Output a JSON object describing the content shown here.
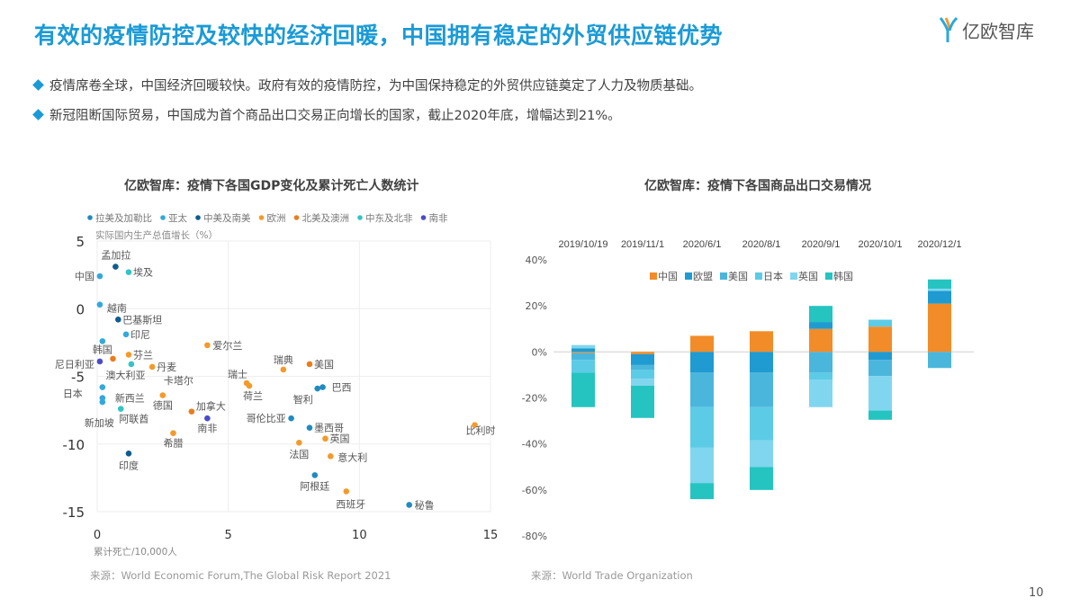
{
  "header": {
    "title": "有效的疫情防控及较快的经济回暖，中国拥有稳定的外贸供应链优势",
    "logo_text": "亿欧智库"
  },
  "bullets": [
    "疫情席卷全球，中国经济回暖较快。政府有效的疫情防控，为中国保持稳定的外贸供应链奠定了人力及物质基础。",
    "新冠阻断国际贸易，中国成为首个商品出口交易正向增长的国家，截止2020年底，增幅达到21%。"
  ],
  "page_number": "10",
  "chart_data": [
    {
      "type": "scatter",
      "title": "亿欧智库：疫情下各国GDP变化及累计死亡人数统计",
      "xlabel": "累计死亡/10,000人",
      "ylabel": "实际国内生产总值增长（%）",
      "xlim": [
        0,
        15
      ],
      "ylim": [
        -15,
        5
      ],
      "xticks": [
        "0",
        "5",
        "10",
        "15"
      ],
      "yticks": [
        "5",
        "0",
        "-5",
        "-10",
        "-15"
      ],
      "grid": true,
      "legend_position": "top",
      "groups": [
        {
          "name": "拉美及加勒比",
          "color": "#1f8bbf"
        },
        {
          "name": "亚太",
          "color": "#32a8dd"
        },
        {
          "name": "中美及南美",
          "color": "#0f5c8f"
        },
        {
          "name": "欧洲",
          "color": "#f39a2b"
        },
        {
          "name": "北美及澳洲",
          "color": "#ea7d1c"
        },
        {
          "name": "中东及北非",
          "color": "#33c4c4"
        },
        {
          "name": "南非",
          "color": "#4b4bc9"
        }
      ],
      "points": [
        {
          "label": "孟加拉",
          "group": 2,
          "x": 0.7,
          "y": 3.1
        },
        {
          "label": "埃及",
          "group": 5,
          "x": 1.2,
          "y": 2.7
        },
        {
          "label": "中国",
          "group": 1,
          "x": 0.1,
          "y": 2.4
        },
        {
          "label": "越南",
          "group": 1,
          "x": 0.1,
          "y": 0.3
        },
        {
          "label": "巴基斯坦",
          "group": 2,
          "x": 0.8,
          "y": -0.8
        },
        {
          "label": "印尼",
          "group": 1,
          "x": 1.1,
          "y": -1.9
        },
        {
          "label": "韩国",
          "group": 1,
          "x": 0.2,
          "y": -2.4
        },
        {
          "label": "芬兰",
          "group": 3,
          "x": 1.2,
          "y": -3.4
        },
        {
          "label": "尼日利亚",
          "group": 6,
          "x": 0.1,
          "y": -3.9
        },
        {
          "label": "澳大利亚",
          "group": 4,
          "x": 0.6,
          "y": -3.7
        },
        {
          "label": "卡塔尔",
          "group": 5,
          "x": 1.3,
          "y": -4.1
        },
        {
          "label": "丹麦",
          "group": 3,
          "x": 2.1,
          "y": -4.3
        },
        {
          "label": "爱尔兰",
          "group": 3,
          "x": 4.2,
          "y": -2.7
        },
        {
          "label": "瑞典",
          "group": 3,
          "x": 7.1,
          "y": -4.5
        },
        {
          "label": "美国",
          "group": 4,
          "x": 8.1,
          "y": -4.1
        },
        {
          "label": "瑞士",
          "group": 3,
          "x": 5.7,
          "y": -5.5
        },
        {
          "label": "荷兰",
          "group": 3,
          "x": 5.8,
          "y": -5.7
        },
        {
          "label": "巴西",
          "group": 0,
          "x": 8.6,
          "y": -5.8
        },
        {
          "label": "智利",
          "group": 0,
          "x": 8.4,
          "y": -5.9
        },
        {
          "label": "日本",
          "group": 1,
          "x": 0.2,
          "y": -5.8
        },
        {
          "label": "新西兰",
          "group": 1,
          "x": 0.2,
          "y": -6.6
        },
        {
          "label": "新加坡",
          "group": 1,
          "x": 0.2,
          "y": -6.9
        },
        {
          "label": "德国",
          "group": 3,
          "x": 2.5,
          "y": -6.4
        },
        {
          "label": "阿联酋",
          "group": 5,
          "x": 0.9,
          "y": -7.4
        },
        {
          "label": "加拿大",
          "group": 4,
          "x": 3.6,
          "y": -7.6
        },
        {
          "label": "南非",
          "group": 6,
          "x": 4.2,
          "y": -8.1
        },
        {
          "label": "希腊",
          "group": 3,
          "x": 2.9,
          "y": -9.2
        },
        {
          "label": "印度",
          "group": 2,
          "x": 1.2,
          "y": -10.7
        },
        {
          "label": "哥伦比亚",
          "group": 0,
          "x": 7.4,
          "y": -8.1
        },
        {
          "label": "墨西哥",
          "group": 0,
          "x": 8.1,
          "y": -8.8
        },
        {
          "label": "英国",
          "group": 3,
          "x": 8.7,
          "y": -9.6
        },
        {
          "label": "法国",
          "group": 3,
          "x": 7.7,
          "y": -9.9
        },
        {
          "label": "意大利",
          "group": 3,
          "x": 8.9,
          "y": -10.9
        },
        {
          "label": "阿根廷",
          "group": 0,
          "x": 8.3,
          "y": -12.3
        },
        {
          "label": "西班牙",
          "group": 3,
          "x": 9.5,
          "y": -13.5
        },
        {
          "label": "秘鲁",
          "group": 0,
          "x": 11.9,
          "y": -14.5
        },
        {
          "label": "比利时",
          "group": 3,
          "x": 14.4,
          "y": -8.6
        }
      ],
      "source": "来源：World Economic Forum,The Global Risk Report 2021"
    },
    {
      "type": "bar",
      "stacked": true,
      "title": "亿欧智库：疫情下各国商品出口交易情况",
      "categories": [
        "2019/10/19",
        "2019/11/1",
        "2020/6/1",
        "2020/8/1",
        "2020/9/1",
        "2020/10/1",
        "2020/12/1"
      ],
      "ylim": [
        -80,
        40
      ],
      "yticks": [
        "40%",
        "20%",
        "0%",
        "-20%",
        "-40%",
        "-60%",
        "-80%"
      ],
      "legend_position": "top",
      "series": [
        {
          "name": "中国",
          "color": "#f28c28",
          "values": [
            -0.5,
            -1,
            7,
            9,
            10,
            11,
            21
          ]
        },
        {
          "name": "欧盟",
          "color": "#1f9bd1",
          "values": [
            1.5,
            -4.7,
            -9,
            -9,
            3,
            -3.5,
            5.5
          ]
        },
        {
          "name": "美国",
          "color": "#4bb6dc",
          "values": [
            -3,
            -2,
            -15,
            -15,
            -9,
            -7,
            -7
          ]
        },
        {
          "name": "日本",
          "color": "#5ccbe6",
          "values": [
            -5.5,
            -4,
            -17.5,
            -14.5,
            -3,
            3,
            0
          ]
        },
        {
          "name": "英国",
          "color": "#80d6ee",
          "values": [
            1.5,
            -3,
            -15.5,
            -11.5,
            -12,
            -15,
            1
          ]
        },
        {
          "name": "韩国",
          "color": "#25c4c0",
          "values": [
            -15,
            -14,
            -7,
            -10,
            7,
            -4,
            4
          ]
        }
      ],
      "source": "来源：World Trade Organization"
    }
  ]
}
